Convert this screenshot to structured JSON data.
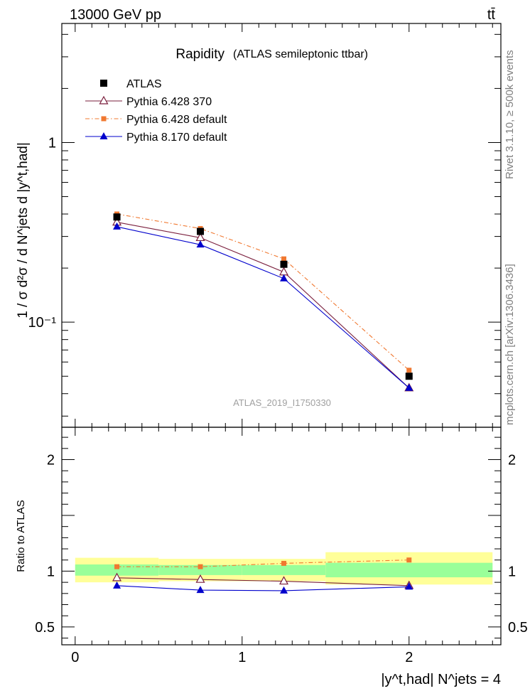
{
  "header": {
    "energy_label": "13000 GeV pp",
    "process_label": "tt̄"
  },
  "side_labels": {
    "rivet": "Rivet 3.1.10, ≥ 500k events",
    "mcplots": "mcplots.cern.ch [arXiv:1306.3436]"
  },
  "chart_data": [
    {
      "type": "line",
      "panel": "main",
      "title": "Rapidity",
      "subtitle": "(ATLAS semileptonic ttbar)",
      "watermark": "ATLAS_2019_I1750330",
      "ylabel": "1 / σ d²σ / d N^jets d |y^t,had|",
      "yscale": "log",
      "xlim": [
        -0.08,
        2.55
      ],
      "ylim": [
        0.026,
        4.6
      ],
      "yticks": [
        {
          "value": 1,
          "label": "1"
        },
        {
          "value": 0.1,
          "label": "10⁻¹"
        }
      ],
      "legend_position": "top-left",
      "x": [
        0.25,
        0.75,
        1.25,
        2.0
      ],
      "series": [
        {
          "name": "ATLAS",
          "values": [
            0.385,
            0.32,
            0.21,
            0.05
          ],
          "color": "#000000",
          "marker": "square",
          "line": "none"
        },
        {
          "name": "Pythia 6.428 370",
          "values": [
            0.36,
            0.295,
            0.19,
            0.043
          ],
          "color": "#7a1f3d",
          "marker": "open-triangle",
          "line": "solid"
        },
        {
          "name": "Pythia 6.428 default",
          "values": [
            0.4,
            0.332,
            0.225,
            0.054
          ],
          "color": "#f07830",
          "marker": "square",
          "line": "dashdot"
        },
        {
          "name": "Pythia 8.170 default",
          "values": [
            0.34,
            0.27,
            0.175,
            0.043
          ],
          "color": "#0000cc",
          "marker": "triangle",
          "line": "solid"
        }
      ]
    },
    {
      "type": "line",
      "panel": "ratio",
      "ylabel": "Ratio to ATLAS",
      "xlabel": "|y^t,had| N^jets = 4",
      "xlim": [
        -0.08,
        2.55
      ],
      "ylim": [
        0.34,
        2.29
      ],
      "xticks": [
        {
          "value": 0,
          "label": "0"
        },
        {
          "value": 1,
          "label": "1"
        },
        {
          "value": 2,
          "label": "2"
        }
      ],
      "yticks": [
        {
          "value": 0.5,
          "label": "0.5"
        },
        {
          "value": 1,
          "label": "1"
        },
        {
          "value": 2,
          "label": "2"
        }
      ],
      "bins": [
        [
          0,
          0.5
        ],
        [
          0.5,
          1.0
        ],
        [
          1.0,
          1.5
        ],
        [
          1.5,
          2.5
        ]
      ],
      "bands": {
        "yellow": [
          [
            0.9,
            1.12
          ],
          [
            0.91,
            1.11
          ],
          [
            0.91,
            1.11
          ],
          [
            0.88,
            1.17
          ]
        ],
        "green": [
          [
            0.96,
            1.06
          ],
          [
            0.965,
            1.055
          ],
          [
            0.965,
            1.055
          ],
          [
            0.945,
            1.075
          ]
        ],
        "yellow_color": "#ffff99",
        "green_color": "#99ff99"
      },
      "x": [
        0.25,
        0.75,
        1.25,
        2.0
      ],
      "series": [
        {
          "name": "Pythia 6.428 370",
          "values": [
            0.94,
            0.925,
            0.91,
            0.87
          ],
          "color": "#7a1f3d",
          "marker": "open-triangle",
          "line": "solid"
        },
        {
          "name": "Pythia 6.428 default",
          "values": [
            1.04,
            1.04,
            1.07,
            1.1
          ],
          "color": "#f07830",
          "marker": "square",
          "line": "dashdot"
        },
        {
          "name": "Pythia 8.170 default",
          "values": [
            0.87,
            0.83,
            0.825,
            0.86
          ],
          "color": "#0000cc",
          "marker": "triangle",
          "line": "solid"
        }
      ]
    }
  ]
}
